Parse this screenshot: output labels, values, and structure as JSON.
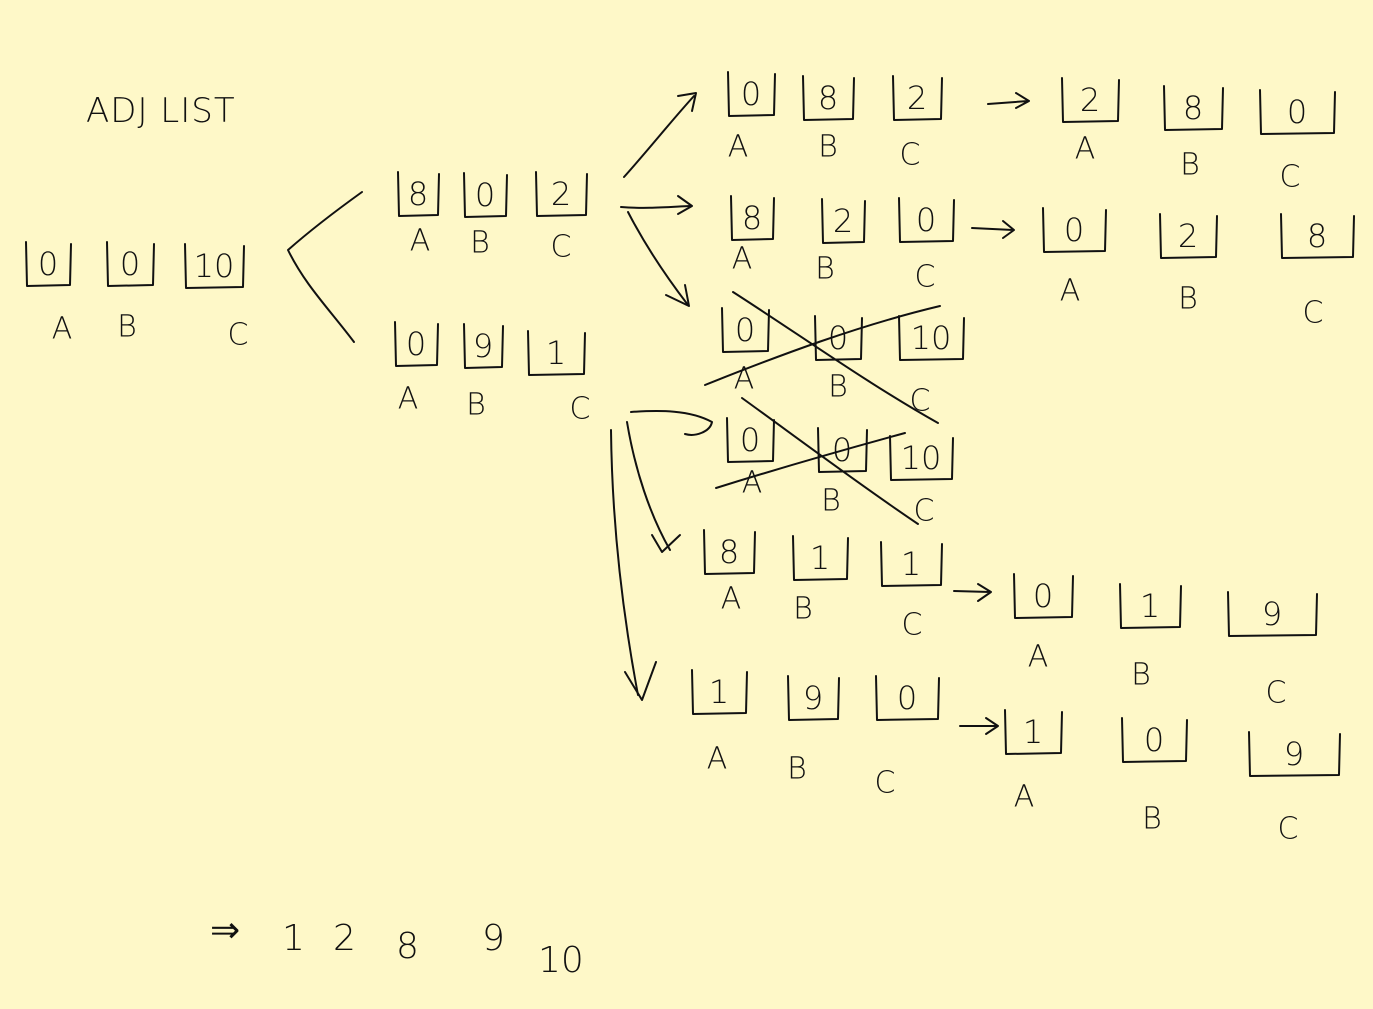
{
  "title": "ADJ LIST",
  "states": [
    {
      "id": "root",
      "values": [
        "0",
        "0",
        "10"
      ],
      "labels": [
        "A",
        "B",
        "C"
      ]
    },
    {
      "id": "s1",
      "values": [
        "8",
        "0",
        "2"
      ],
      "labels": [
        "A",
        "B",
        "C"
      ]
    },
    {
      "id": "s2",
      "values": [
        "0",
        "9",
        "1"
      ],
      "labels": [
        "A",
        "B",
        "C"
      ]
    },
    {
      "id": "s11",
      "values": [
        "0",
        "8",
        "2"
      ],
      "labels": [
        "A",
        "B",
        "C"
      ]
    },
    {
      "id": "s11n",
      "values": [
        "2",
        "8",
        "0"
      ],
      "labels": [
        "A",
        "B",
        "C"
      ]
    },
    {
      "id": "s12",
      "values": [
        "8",
        "2",
        "0"
      ],
      "labels": [
        "A",
        "B",
        "C"
      ]
    },
    {
      "id": "s12n",
      "values": [
        "0",
        "2",
        "8"
      ],
      "labels": [
        "A",
        "B",
        "C"
      ]
    },
    {
      "id": "s13",
      "values": [
        "0",
        "0",
        "10"
      ],
      "labels": [
        "A",
        "B",
        "C"
      ],
      "crossed": true
    },
    {
      "id": "s21",
      "values": [
        "0",
        "0",
        "10"
      ],
      "labels": [
        "A",
        "B",
        "C"
      ],
      "crossed": true
    },
    {
      "id": "s22",
      "values": [
        "8",
        "1",
        "1"
      ],
      "labels": [
        "A",
        "B",
        "C"
      ]
    },
    {
      "id": "s22n",
      "values": [
        "0",
        "1",
        "9"
      ],
      "labels": [
        "A",
        "B",
        "C"
      ]
    },
    {
      "id": "s23",
      "values": [
        "1",
        "9",
        "0"
      ],
      "labels": [
        "A",
        "B",
        "C"
      ]
    },
    {
      "id": "s23n",
      "values": [
        "1",
        "0",
        "9"
      ],
      "labels": [
        "A",
        "B",
        "C"
      ]
    }
  ],
  "result": {
    "arrow": "⇒",
    "values": [
      "1",
      "2",
      "8",
      "9",
      "10"
    ]
  }
}
